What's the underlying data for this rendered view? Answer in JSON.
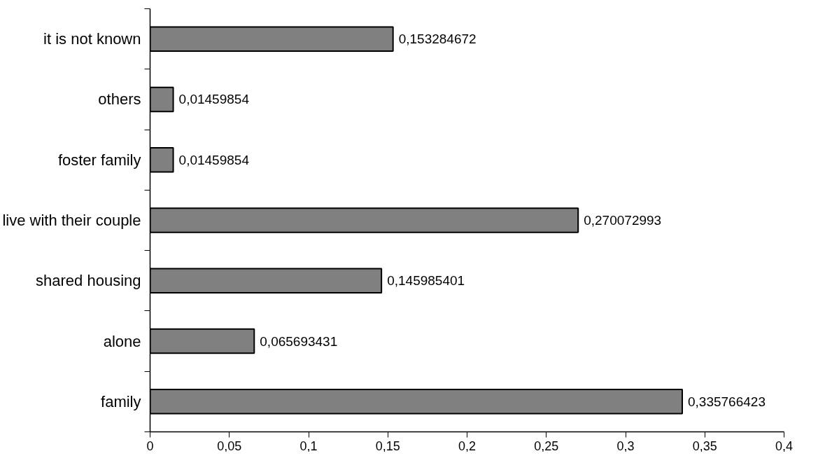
{
  "chart_data": {
    "type": "bar",
    "orientation": "horizontal",
    "categories": [
      "it is not known",
      "others",
      "foster family",
      "live with their couple",
      "shared housing",
      "alone",
      "family"
    ],
    "values": [
      0.153284672,
      0.01459854,
      0.01459854,
      0.270072993,
      0.145985401,
      0.065693431,
      0.335766423
    ],
    "value_labels": [
      "0,153284672",
      "0,01459854",
      "0,01459854",
      "0,270072993",
      "0,145985401",
      "0,065693431",
      "0,335766423"
    ],
    "color": "#808080",
    "xlim": [
      0,
      0.4
    ],
    "xticks": [
      0,
      {
        "value": 0.05,
        "label": "0,05"
      },
      {
        "value": 0.1,
        "label": "0,1"
      },
      {
        "value": 0.15,
        "label": "0,15"
      },
      {
        "value": 0.2,
        "label": "0,2"
      },
      {
        "value": 0.25,
        "label": "0,25"
      },
      {
        "value": 0.3,
        "label": "0,3"
      },
      {
        "value": 0.35,
        "label": "0,35"
      },
      {
        "value": 0.4,
        "label": "0,4"
      }
    ],
    "grid": false
  }
}
